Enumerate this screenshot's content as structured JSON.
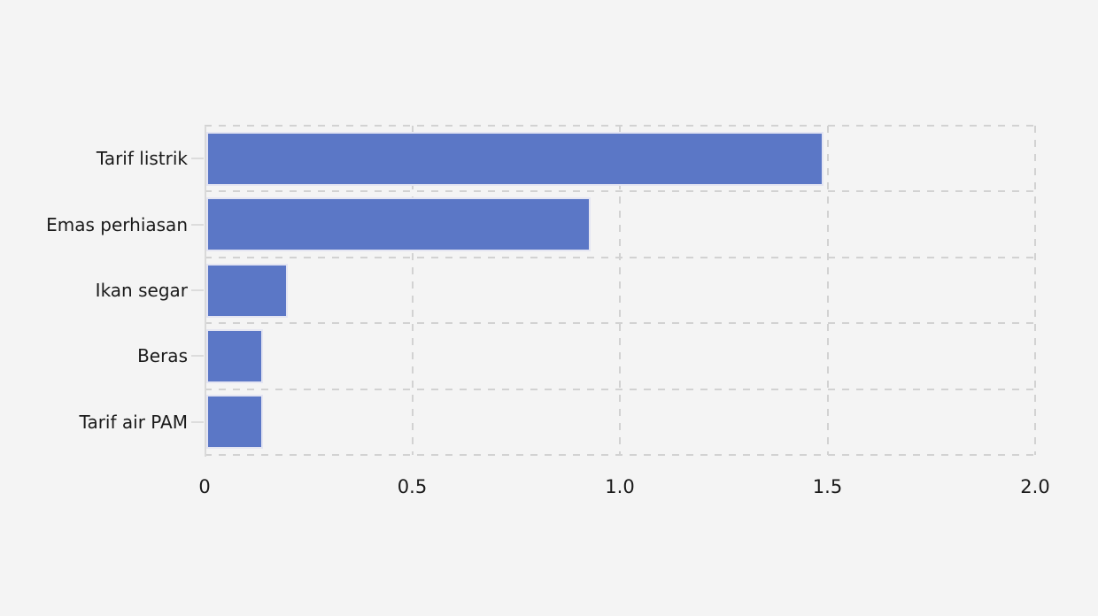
{
  "chart_data": {
    "type": "bar",
    "orientation": "horizontal",
    "title": "",
    "xlabel": "",
    "ylabel": "",
    "categories": [
      "Tarif listrik",
      "Emas perhiasan",
      "Ikan segar",
      "Beras",
      "Tarif air PAM"
    ],
    "values": [
      1.49,
      0.93,
      0.2,
      0.14,
      0.14
    ],
    "x_ticks": [
      "0",
      "0.5",
      "1.0",
      "1.5",
      "2.0"
    ],
    "x_tick_values": [
      0,
      0.5,
      1.0,
      1.5,
      2.0
    ],
    "xlim": [
      0,
      2.0
    ],
    "grid": "dashed",
    "legend_position": "none",
    "colors": {
      "bar_fill": "#5b77c6",
      "bar_edge": "#e4e5f2",
      "background": "#f4f4f4",
      "gridline": "#d2d2d2",
      "axis_spine": "#d9d9d9",
      "tick_mark": "#dcdcdc",
      "text": "#1a1a1a"
    }
  }
}
